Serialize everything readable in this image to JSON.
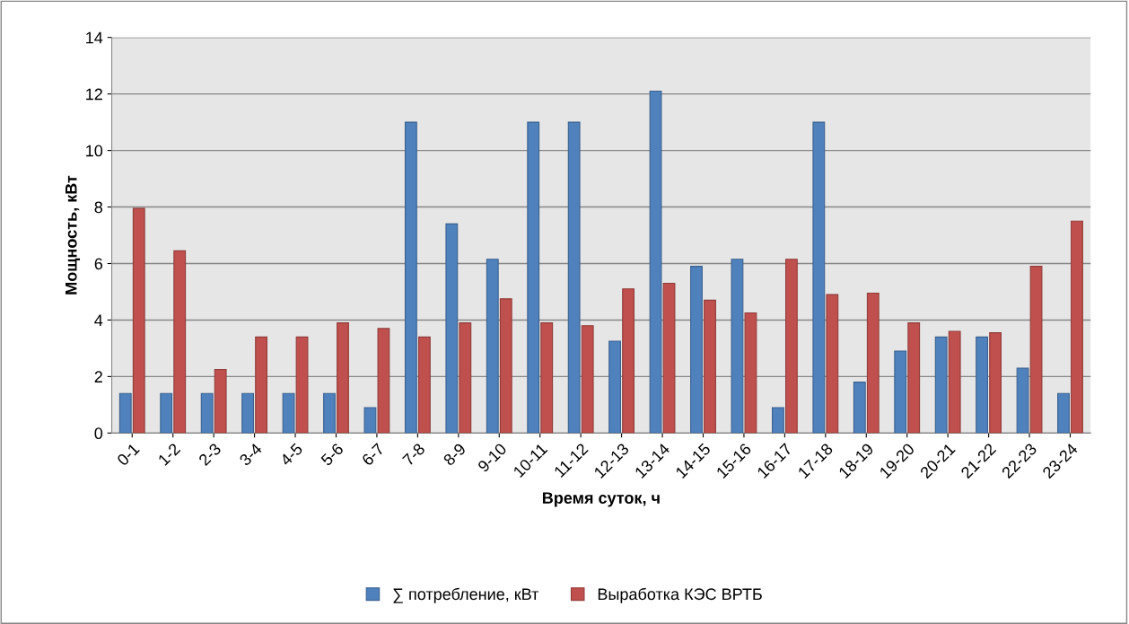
{
  "chart_data": {
    "type": "bar",
    "xlabel": "Время суток, ч",
    "ylabel": "Мощность, кВт",
    "categories": [
      "0-1",
      "1-2",
      "2-3",
      "3-4",
      "4-5",
      "5-6",
      "6-7",
      "7-8",
      "8-9",
      "9-10",
      "10-11",
      "11-12",
      "12-13",
      "13-14",
      "14-15",
      "15-16",
      "16-17",
      "17-18",
      "18-19",
      "19-20",
      "20-21",
      "21-22",
      "22-23",
      "23-24"
    ],
    "series": [
      {
        "name": "∑ потребление, кВт",
        "color": "#4f81bd",
        "values": [
          1.4,
          1.4,
          1.4,
          1.4,
          1.4,
          1.4,
          0.9,
          11,
          7.4,
          6.15,
          11,
          11,
          3.25,
          12.1,
          5.9,
          6.15,
          0.9,
          11,
          1.8,
          2.9,
          3.4,
          3.4,
          2.3,
          1.4
        ]
      },
      {
        "name": "Выработка КЭС ВРТБ",
        "color": "#c0504d",
        "values": [
          7.95,
          6.45,
          2.25,
          3.4,
          3.4,
          3.9,
          3.7,
          3.4,
          3.9,
          4.75,
          3.9,
          3.8,
          5.1,
          5.3,
          4.7,
          4.25,
          6.15,
          4.9,
          4.95,
          3.9,
          3.6,
          3.55,
          5.9,
          7.5
        ]
      }
    ],
    "ylim": [
      0,
      14
    ],
    "yticks": [
      0,
      2,
      4,
      6,
      8,
      10,
      12,
      14
    ],
    "grid": "y",
    "legend": "bottom"
  }
}
